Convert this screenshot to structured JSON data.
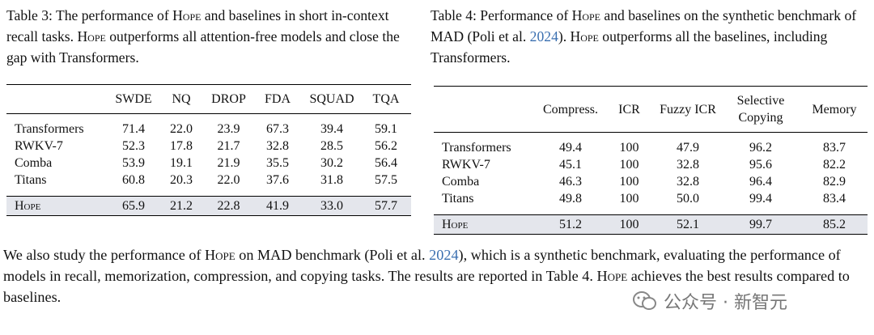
{
  "table3": {
    "caption": [
      "Table 3: The performance of ",
      "Hope",
      " and baselines in short in-context recall tasks. ",
      "Hope",
      " outperforms all attention-free models and close the gap with Transformers."
    ],
    "columns": [
      "SWDE",
      "NQ",
      "DROP",
      "FDA",
      "SQUAD",
      "TQA"
    ],
    "rows": [
      [
        "Transformers",
        "71.4",
        "22.0",
        "23.9",
        "67.3",
        "39.4",
        "59.1"
      ],
      [
        "RWKV-7",
        "52.3",
        "17.8",
        "21.7",
        "32.8",
        "28.5",
        "56.2"
      ],
      [
        "Comba",
        "53.9",
        "19.1",
        "21.9",
        "35.5",
        "30.2",
        "56.4"
      ],
      [
        "Titans",
        "60.8",
        "20.3",
        "22.0",
        "37.6",
        "31.8",
        "57.5"
      ],
      [
        "Hope",
        "65.9",
        "21.2",
        "22.8",
        "41.9",
        "33.0",
        "57.7"
      ]
    ]
  },
  "table4": {
    "caption": [
      "Table 4: Performance of ",
      "Hope",
      " and baselines on the synthetic benchmark of MAD (Poli et al. ",
      "2024",
      "). ",
      "Hope",
      " outperforms all the baselines, including Transformers."
    ],
    "columns": [
      "Compress.",
      "ICR",
      "Fuzzy ICR",
      "Selective Copying",
      "Memory"
    ],
    "rows": [
      [
        "Transformers",
        "49.4",
        "100",
        "47.9",
        "96.2",
        "83.7"
      ],
      [
        "RWKV-7",
        "45.1",
        "100",
        "32.8",
        "95.6",
        "82.2"
      ],
      [
        "Comba",
        "46.3",
        "100",
        "32.8",
        "96.4",
        "82.9"
      ],
      [
        "Titans",
        "49.8",
        "100",
        "50.0",
        "99.4",
        "83.4"
      ],
      [
        "Hope",
        "51.2",
        "100",
        "52.1",
        "99.7",
        "85.2"
      ]
    ]
  },
  "paragraph": [
    "We also study the performance of ",
    "Hope",
    " on MAD benchmark (Poli et al. ",
    "2024",
    "), which is a synthetic benchmark, evaluating the performance of models in recall, memorization, compression, and copying tasks. The results are reported in Table 4. ",
    "Hope",
    " achieves the best results compared to baselines."
  ],
  "watermark": "公众号 · 新智元"
}
